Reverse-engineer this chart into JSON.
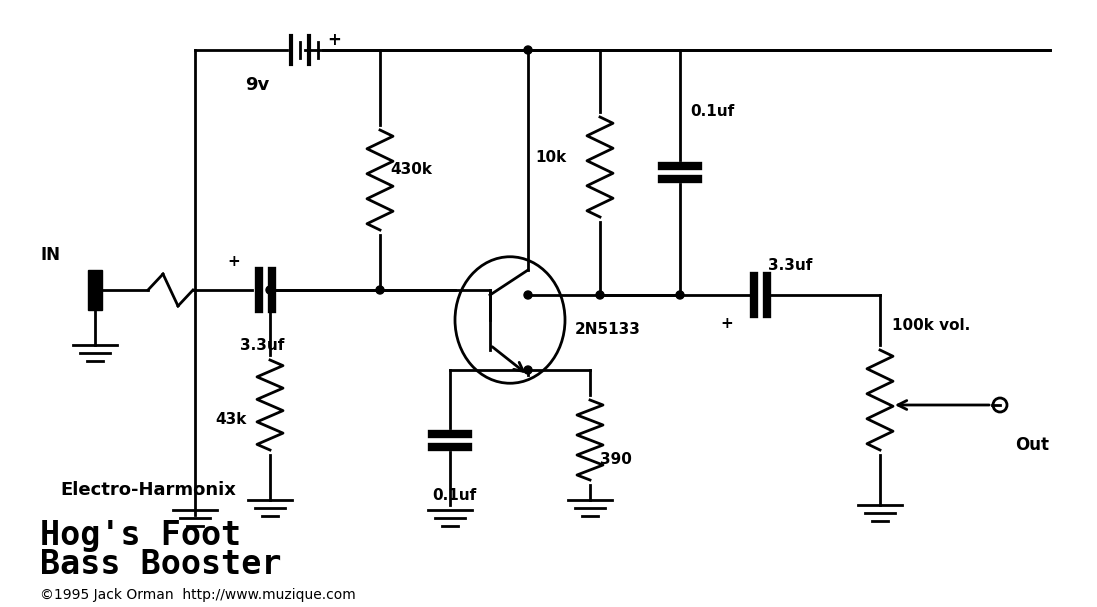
{
  "bg_color": "#ffffff",
  "lc": "#000000",
  "lw": 2.0,
  "labels": {
    "battery": "9v",
    "R1": "430k",
    "R2": "43k",
    "R3": "10k",
    "R4": "390",
    "R5": "100k vol.",
    "C1": "3.3uf",
    "C2": "3.3uf",
    "C3": "0.1uf",
    "C4": "0.1uf",
    "Q1": "2N5133",
    "IN": "IN",
    "Out": "Out",
    "title1": "Hog's Foot",
    "title2": "Bass Booster",
    "subtitle": "Electro-Harmonix",
    "copyright": "©1995 Jack Orman  http://www.muzique.com"
  }
}
